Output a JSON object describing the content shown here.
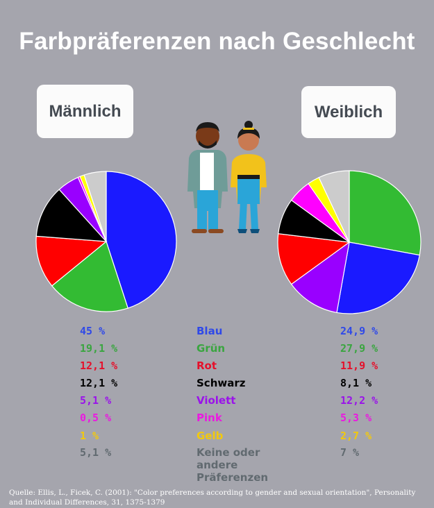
{
  "title": "Farbpräferenzen nach Geschlecht",
  "labels": {
    "male": "Männlich",
    "female": "Weiblich"
  },
  "chart_data": [
    {
      "type": "pie",
      "title": "Männlich",
      "categories": [
        "Blau",
        "Grün",
        "Rot",
        "Schwarz",
        "Violett",
        "Pink",
        "Gelb",
        "Keine oder andere Präferenzen"
      ],
      "values": [
        45,
        19.1,
        12.1,
        12.1,
        5.1,
        0.5,
        1,
        5.1
      ],
      "value_labels": [
        "45 %",
        "19,1 %",
        "12,1 %",
        "12,1 %",
        "5,1 %",
        "0,5 %",
        "1 %",
        "5,1 %"
      ],
      "colors": [
        "#1a1aff",
        "#33bb33",
        "#ff0000",
        "#000000",
        "#9900ff",
        "#ff00ff",
        "#ffff00",
        "#cccccc"
      ]
    },
    {
      "type": "pie",
      "title": "Weiblich",
      "categories": [
        "Grün",
        "Blau",
        "Violett",
        "Rot",
        "Schwarz",
        "Pink",
        "Gelb",
        "Keine oder andere Präferenzen"
      ],
      "values": [
        27.9,
        24.9,
        12.2,
        11.9,
        8.1,
        5.3,
        2.7,
        7
      ],
      "value_labels": [
        "27,9 %",
        "24,9 %",
        "12,2 %",
        "11,9 %",
        "8,1 %",
        "5,3 %",
        "2,7 %",
        "7 %"
      ],
      "colors": [
        "#33bb33",
        "#1a1aff",
        "#9900ff",
        "#ff0000",
        "#000000",
        "#ff00ff",
        "#ffff00",
        "#cccccc"
      ]
    }
  ],
  "legend": [
    {
      "category": "Blau",
      "male": "45 %",
      "female": "24,9 %",
      "color": "#2f49e8"
    },
    {
      "category": "Grün",
      "male": "19,1 %",
      "female": "27,9 %",
      "color": "#3aa540"
    },
    {
      "category": "Rot",
      "male": "12,1 %",
      "female": "11,9 %",
      "color": "#e5102b"
    },
    {
      "category": "Schwarz",
      "male": "12,1 %",
      "female": "8,1 %",
      "color": "#000000"
    },
    {
      "category": "Violett",
      "male": "5,1 %",
      "female": "12,2 %",
      "color": "#9a12ea"
    },
    {
      "category": "Pink",
      "male": "0,5 %",
      "female": "5,3 %",
      "color": "#ea1ae0"
    },
    {
      "category": "Gelb",
      "male": "1 %",
      "female": "2,7 %",
      "color": "#f2c90d"
    },
    {
      "category": "Keine oder andere Präferenzen",
      "male": "5,1 %",
      "female": "7 %",
      "color": "#616a70"
    }
  ],
  "source": "Quelle: Ellis, L., Ficek, C. (2001): \"Color preferences according to gender and sexual orientation\", Personality and Individual Differences, 31, 1375-1379"
}
